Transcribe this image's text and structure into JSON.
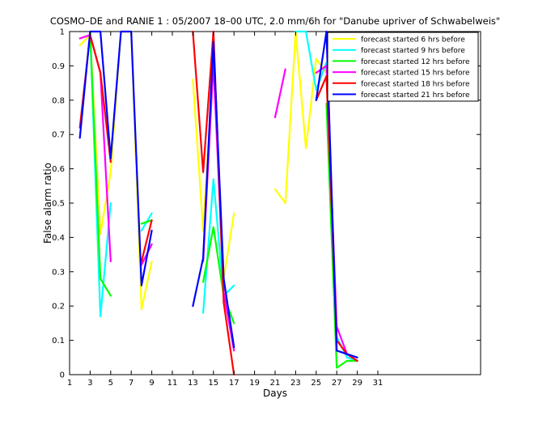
{
  "chart_data": {
    "type": "line",
    "title": "COSMO–DE and RANIE 1 : 05/2007 18–00 UTC, 2.0 mm/6h for \"Danube upriver of Schwabelweis\"",
    "xlabel": "Days",
    "ylabel": "False alarm ratio",
    "xlim": [
      1,
      41
    ],
    "ylim": [
      0,
      1
    ],
    "xticks": [
      1,
      3,
      5,
      7,
      9,
      11,
      13,
      15,
      17,
      19,
      21,
      23,
      25,
      27,
      29,
      31
    ],
    "yticks": [
      0,
      0.1,
      0.2,
      0.3,
      0.4,
      0.5,
      0.6,
      0.7,
      0.8,
      0.9,
      1
    ],
    "ytick_labels": [
      "0",
      "0.1",
      "0.2",
      "0.3",
      "0.4",
      "0.5",
      "0.6",
      "0.7",
      "0.8",
      "0.9",
      "1"
    ],
    "grid": false,
    "legend_position": "top-right",
    "series": [
      {
        "name": "forecast started 6 hrs before",
        "color": "#ffff00",
        "points": [
          [
            2,
            0.96
          ],
          [
            3,
            0.99
          ],
          [
            4,
            0.41
          ],
          [
            5,
            0.59
          ],
          [
            6,
            1.0
          ],
          [
            7,
            1.0
          ],
          [
            8,
            0.19
          ],
          [
            9,
            0.33
          ],
          null,
          [
            13,
            0.86
          ],
          [
            14,
            0.42
          ],
          [
            15,
            0.91
          ],
          [
            16,
            0.28
          ],
          [
            17,
            0.47
          ],
          null,
          [
            21,
            0.54
          ],
          [
            22,
            0.5
          ],
          [
            23,
            1.0
          ],
          [
            24,
            0.66
          ],
          [
            25,
            0.92
          ],
          [
            26,
            0.88
          ],
          null,
          [
            31,
            0.91
          ]
        ]
      },
      {
        "name": "forecast started 9 hrs before",
        "color": "#00ffff",
        "points": [
          [
            3,
            1.0
          ],
          [
            4,
            0.17
          ],
          [
            5,
            0.5
          ],
          null,
          [
            8,
            0.42
          ],
          [
            9,
            0.47
          ],
          null,
          [
            14,
            0.18
          ],
          [
            15,
            0.57
          ],
          [
            16,
            0.23
          ],
          [
            17,
            0.26
          ],
          null,
          [
            23,
            1.0
          ],
          [
            24,
            1.0
          ],
          [
            25,
            0.83
          ],
          [
            26,
            0.91
          ],
          [
            27,
            0.11
          ],
          [
            28,
            0.05
          ],
          [
            29,
            0.04
          ]
        ]
      },
      {
        "name": "forecast started 12 hrs before",
        "color": "#00ff00",
        "points": [
          [
            3,
            1.0
          ],
          [
            4,
            0.28
          ],
          [
            5,
            0.23
          ],
          null,
          [
            8,
            0.44
          ],
          [
            9,
            0.45
          ],
          null,
          [
            14,
            0.27
          ],
          [
            15,
            0.43
          ],
          [
            16,
            0.23
          ],
          [
            17,
            0.15
          ],
          null,
          [
            26,
            0.79
          ],
          [
            27,
            0.02
          ],
          [
            28,
            0.04
          ],
          [
            29,
            0.04
          ]
        ]
      },
      {
        "name": "forecast started 15 hrs before",
        "color": "#ff00ff",
        "points": [
          [
            2,
            0.98
          ],
          [
            3,
            0.99
          ],
          [
            4,
            0.88
          ],
          [
            5,
            0.33
          ],
          null,
          [
            8,
            0.32
          ],
          [
            9,
            0.38
          ],
          null,
          [
            14,
            0.33
          ],
          [
            15,
            0.91
          ],
          [
            16,
            0.24
          ],
          [
            17,
            0.07
          ],
          null,
          [
            21,
            0.75
          ],
          [
            22,
            0.89
          ],
          null,
          [
            25,
            0.88
          ],
          [
            26,
            0.9
          ],
          [
            27,
            0.14
          ],
          [
            28,
            0.06
          ],
          [
            29,
            0.04
          ]
        ]
      },
      {
        "name": "forecast started 18 hrs before",
        "color": "#ff0000",
        "points": [
          [
            2,
            0.72
          ],
          [
            3,
            0.99
          ],
          [
            4,
            0.88
          ],
          [
            5,
            0.62
          ],
          null,
          [
            8,
            0.33
          ],
          [
            9,
            0.45
          ],
          null,
          [
            13,
            1.0
          ],
          [
            14,
            0.59
          ],
          [
            15,
            1.0
          ],
          [
            16,
            0.21
          ],
          [
            17,
            0.0
          ],
          null,
          [
            25,
            0.8
          ],
          [
            26,
            0.87
          ],
          [
            27,
            0.1
          ],
          [
            28,
            0.06
          ],
          [
            29,
            0.04
          ]
        ]
      },
      {
        "name": "forecast started 21 hrs before",
        "color": "#0000ff",
        "points": [
          [
            2,
            0.69
          ],
          [
            3,
            1.0
          ],
          [
            4,
            1.0
          ],
          [
            5,
            0.63
          ],
          [
            6,
            1.0
          ],
          [
            7,
            1.0
          ],
          [
            8,
            0.26
          ],
          [
            9,
            0.42
          ],
          null,
          [
            13,
            0.2
          ],
          [
            14,
            0.34
          ],
          [
            15,
            0.97
          ],
          [
            16,
            0.28
          ],
          [
            17,
            0.08
          ],
          null,
          [
            25,
            0.8
          ],
          [
            26,
            1.0
          ],
          [
            27,
            0.07
          ],
          [
            28,
            0.06
          ],
          [
            29,
            0.05
          ]
        ]
      }
    ]
  }
}
